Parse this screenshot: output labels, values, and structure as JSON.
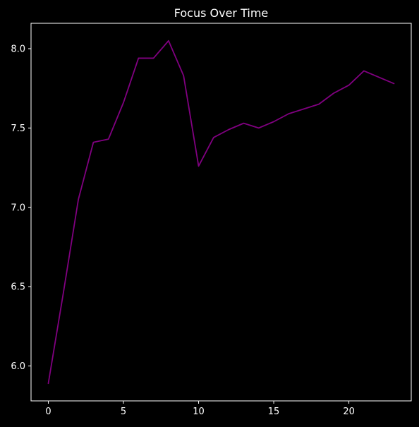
{
  "chart_data": {
    "type": "line",
    "title": "Focus Over Time",
    "xlabel": "",
    "ylabel": "",
    "xlim": [
      -1.15,
      24.15
    ],
    "ylim": [
      5.78,
      8.16
    ],
    "x_ticks": [
      0,
      5,
      10,
      15,
      20
    ],
    "y_ticks": [
      6.0,
      6.5,
      7.0,
      7.5,
      8.0
    ],
    "x_tick_labels": [
      "0",
      "5",
      "10",
      "15",
      "20"
    ],
    "y_tick_labels": [
      "6.0",
      "6.5",
      "7.0",
      "7.5",
      "8.0"
    ],
    "grid": false,
    "legend": "none",
    "series": [
      {
        "color": "#800080",
        "x": [
          0,
          1,
          2,
          3,
          4,
          5,
          6,
          7,
          8,
          9,
          10,
          11,
          12,
          13,
          14,
          15,
          16,
          17,
          18,
          19,
          20,
          21,
          22,
          23
        ],
        "y": [
          5.89,
          6.46,
          7.05,
          7.41,
          7.43,
          7.66,
          7.94,
          7.94,
          8.05,
          7.83,
          7.26,
          7.44,
          7.49,
          7.53,
          7.5,
          7.54,
          7.59,
          7.62,
          7.65,
          7.72,
          7.77,
          7.86,
          7.82,
          7.78
        ]
      }
    ]
  },
  "colors": {
    "background": "#000000",
    "axes": "#ffffff",
    "text": "#ffffff",
    "line": "#800080"
  }
}
